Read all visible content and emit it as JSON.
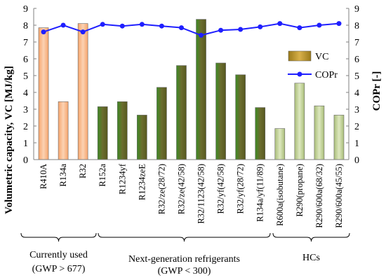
{
  "chart_data": {
    "type": "bar",
    "categories": [
      "R410A",
      "R134a",
      "R32",
      "R152a",
      "R1234yf",
      "R1234zeE",
      "R32/ze(28/72)",
      "R32/ze(42/58)",
      "R32/1123(42/58)",
      "R32/yf(42/58)",
      "R32/yf(28/72)",
      "R134a/yf(11/89)",
      "R600a(isobutane)",
      "R290(propane)",
      "R290/600a(68/32)",
      "R290/600a(45/55)"
    ],
    "series": [
      {
        "name": "VC",
        "type": "bar",
        "axis": "left",
        "values": [
          7.85,
          3.45,
          8.1,
          3.15,
          3.45,
          2.65,
          4.3,
          5.6,
          8.35,
          5.75,
          5.05,
          3.1,
          1.85,
          4.55,
          3.2,
          2.65
        ]
      },
      {
        "name": "COPr",
        "type": "line",
        "axis": "right",
        "values": [
          7.6,
          8.0,
          7.6,
          8.05,
          7.95,
          8.05,
          7.95,
          7.85,
          7.4,
          7.7,
          7.75,
          7.9,
          8.1,
          7.85,
          8.0,
          8.1
        ]
      }
    ],
    "bar_colors": [
      "#f6b183",
      "#f6b183",
      "#f6b183",
      "#4a7a32",
      "#4a7a32",
      "#4a7a32",
      "#4a7a32",
      "#4a7a32",
      "#4a7a32",
      "#4a7a32",
      "#4a7a32",
      "#4a7a32",
      "#c3d69b",
      "#c3d69b",
      "#c3d69b",
      "#c3d69b"
    ],
    "line_color": "#1f1fff",
    "ylabel": "Volumetric capacity, VC [MJ/kg]",
    "y2label": "COPr [-]",
    "ylim": [
      0,
      9
    ],
    "y2lim": [
      0,
      9
    ],
    "yticks": [
      "0",
      "1",
      "2",
      "3",
      "4",
      "5",
      "6",
      "7",
      "8",
      "9"
    ],
    "y2ticks": [
      "0",
      "1",
      "2",
      "3",
      "4",
      "5",
      "6",
      "7",
      "8",
      "9"
    ],
    "legend": {
      "position": "right",
      "items": [
        "VC",
        "COPr"
      ]
    },
    "groups": [
      {
        "label": "Currently used",
        "sublabel": "(GWP > 677)",
        "from": 0,
        "to": 2
      },
      {
        "label": "Next-generation refrigerants",
        "sublabel": "(GWP < 300)",
        "from": 3,
        "to": 11
      },
      {
        "label": "HCs",
        "sublabel": "",
        "from": 12,
        "to": 15
      }
    ],
    "grid": false
  }
}
